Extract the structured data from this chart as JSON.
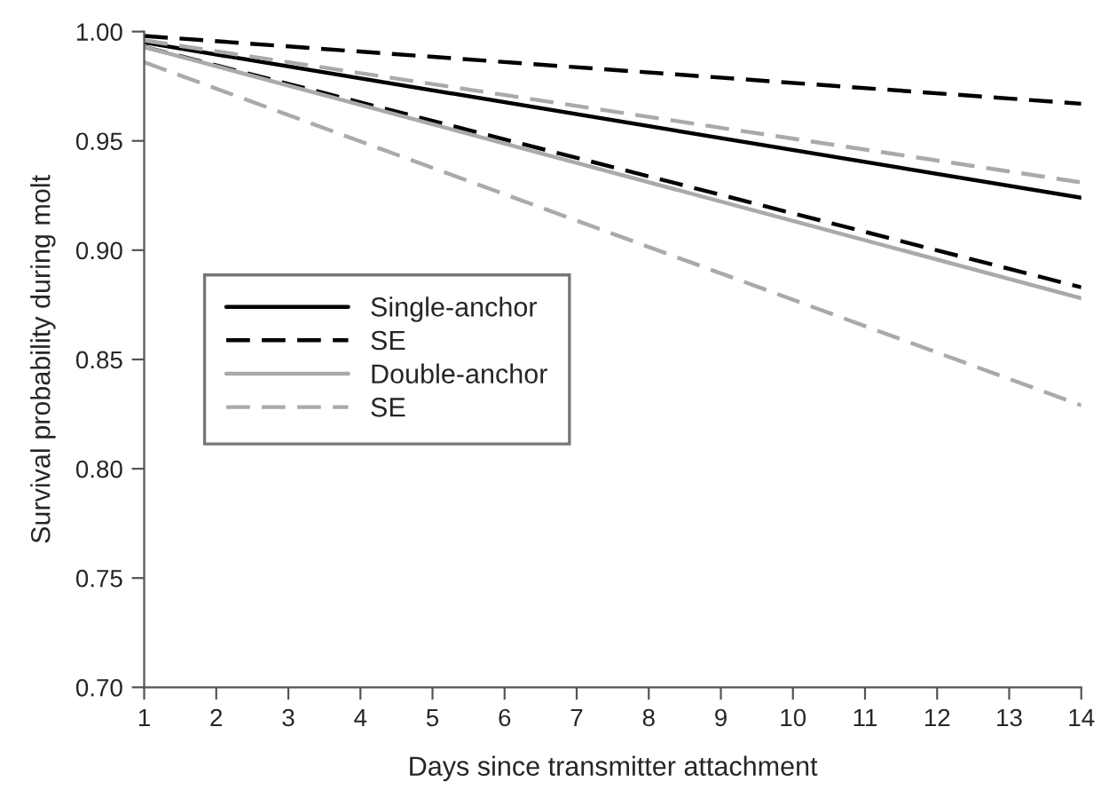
{
  "chart_data": {
    "type": "line",
    "xlabel": "Days since transmitter attachment",
    "ylabel": "Survival probability during molt",
    "x": [
      1,
      14
    ],
    "xlim": [
      1,
      14
    ],
    "xticks": [
      1,
      2,
      3,
      4,
      5,
      6,
      7,
      8,
      9,
      10,
      11,
      12,
      13,
      14
    ],
    "ylim": [
      0.7,
      1.0
    ],
    "yticks": [
      {
        "value": 0.7,
        "label": "0.70"
      },
      {
        "value": 0.75,
        "label": "0.75"
      },
      {
        "value": 0.8,
        "label": "0.80"
      },
      {
        "value": 0.85,
        "label": "0.85"
      },
      {
        "value": 0.9,
        "label": "0.90"
      },
      {
        "value": 0.95,
        "label": "0.95"
      },
      {
        "value": 1.0,
        "label": "1.00"
      }
    ],
    "grid": false,
    "legend": "left",
    "marker": "none",
    "series": [
      {
        "name": "Single-anchor",
        "color": "#000000",
        "line_style": "solid",
        "values": [
          0.995,
          0.924
        ]
      },
      {
        "name": "SE",
        "color": "#000000",
        "line_style": "dashed",
        "values": [
          0.998,
          0.967
        ]
      },
      {
        "color": "#000000",
        "line_style": "dashed",
        "values": [
          0.993,
          0.883
        ]
      },
      {
        "name": "Double-anchor",
        "color": "#aaaaaa",
        "line_style": "solid",
        "values": [
          0.993,
          0.878
        ]
      },
      {
        "name": "SE",
        "color": "#aaaaaa",
        "line_style": "dashed",
        "values": [
          0.996,
          0.931
        ]
      },
      {
        "color": "#aaaaaa",
        "line_style": "dashed",
        "values": [
          0.986,
          0.829
        ]
      }
    ]
  }
}
